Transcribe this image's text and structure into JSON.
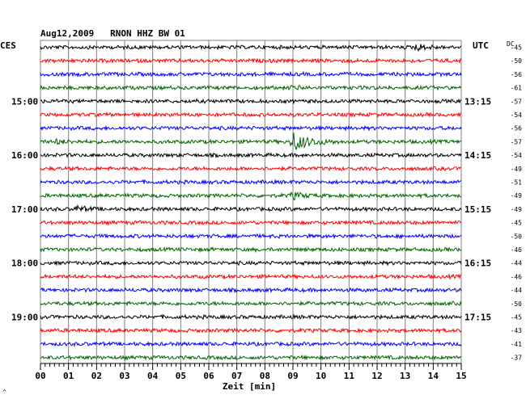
{
  "header": {
    "title": "Aug12,2009   RNON HHZ BW 01",
    "left_tz": "CES",
    "right_tz": "UTC",
    "dc_label": "DC"
  },
  "footer": {
    "xlabel": "Zeit [min]",
    "corner_mark": "^"
  },
  "colors": {
    "trace_cycle": [
      "#000000",
      "#ff0000",
      "#0000ff",
      "#006600"
    ],
    "grid": "#808080",
    "text": "#000000"
  },
  "chart_data": {
    "type": "line",
    "title": "Aug12,2009   RNON HHZ BW 01",
    "xlabel": "Zeit [min]",
    "ylabel": "",
    "x_ticks": [
      "00",
      "01",
      "02",
      "03",
      "04",
      "05",
      "06",
      "07",
      "08",
      "09",
      "10",
      "11",
      "12",
      "13",
      "14",
      "15"
    ],
    "xlim": [
      0,
      15
    ],
    "grid": true,
    "left_time_labels": [
      {
        "row": 4,
        "text": "15:00"
      },
      {
        "row": 8,
        "text": "16:00"
      },
      {
        "row": 12,
        "text": "17:00"
      },
      {
        "row": 16,
        "text": "18:00"
      },
      {
        "row": 20,
        "text": "19:00"
      }
    ],
    "right_time_labels": [
      {
        "row": 4,
        "text": "13:15"
      },
      {
        "row": 8,
        "text": "14:15"
      },
      {
        "row": 12,
        "text": "15:15"
      },
      {
        "row": 16,
        "text": "16:15"
      },
      {
        "row": 20,
        "text": "17:15"
      }
    ],
    "dc_offsets": [
      "-45",
      "-50",
      "-56",
      "-61",
      "-57",
      "-54",
      "-56",
      "-57",
      "-54",
      "-49",
      "-51",
      "-49",
      "-49",
      "-45",
      "-50",
      "-46",
      "-44",
      "-46",
      "-44",
      "-50",
      "-45",
      "-43",
      "-41",
      "-37"
    ],
    "events": [
      {
        "row": 0,
        "minute": 13.4,
        "amplitude": 0.6
      },
      {
        "row": 3,
        "minute": 9.0,
        "amplitude": 0.3
      },
      {
        "row": 7,
        "minute": 9.0,
        "amplitude": 1.8
      },
      {
        "row": 7,
        "minute": 0.6,
        "amplitude": 0.35
      },
      {
        "row": 11,
        "minute": 9.0,
        "amplitude": 0.6
      },
      {
        "row": 12,
        "minute": 1.3,
        "amplitude": 0.5
      }
    ]
  }
}
